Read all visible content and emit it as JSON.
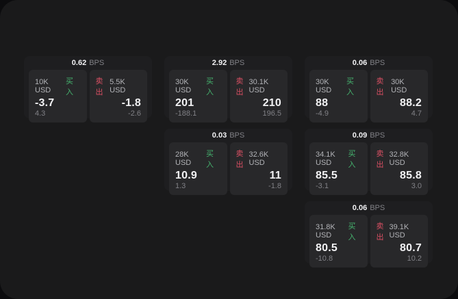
{
  "theme": {
    "outer_bg": "#0c0c0e",
    "page_bg": "#1a1a1b",
    "card_bg": "#1e1e20",
    "panel_bg": "#28282a",
    "text_primary": "#f2f2f4",
    "text_secondary": "#b2b3b7",
    "text_muted": "#818186",
    "buy_color": "#45b36e",
    "sell_color": "#d94f63"
  },
  "labels": {
    "bps_unit": "BPS",
    "buy": "买入",
    "sell": "卖出"
  },
  "cards": [
    {
      "row": 1,
      "col": 1,
      "bps": "0.62",
      "buy": {
        "size": "10K USD",
        "price": "-3.7",
        "delta": "4.3"
      },
      "sell": {
        "size": "5.5K USD",
        "price": "-1.8",
        "delta": "-2.6"
      }
    },
    {
      "row": 1,
      "col": 2,
      "bps": "2.92",
      "buy": {
        "size": "30K USD",
        "price": "201",
        "delta": "-188.1"
      },
      "sell": {
        "size": "30.1K USD",
        "price": "210",
        "delta": "196.5"
      }
    },
    {
      "row": 1,
      "col": 3,
      "bps": "0.06",
      "buy": {
        "size": "30K USD",
        "price": "88",
        "delta": "-4.9"
      },
      "sell": {
        "size": "30K USD",
        "price": "88.2",
        "delta": "4.7"
      }
    },
    {
      "row": 2,
      "col": 2,
      "bps": "0.03",
      "buy": {
        "size": "28K USD",
        "price": "10.9",
        "delta": "1.3"
      },
      "sell": {
        "size": "32.6K USD",
        "price": "11",
        "delta": "-1.8"
      }
    },
    {
      "row": 2,
      "col": 3,
      "bps": "0.09",
      "buy": {
        "size": "34.1K USD",
        "price": "85.5",
        "delta": "-3.1"
      },
      "sell": {
        "size": "32.8K USD",
        "price": "85.8",
        "delta": "3.0"
      }
    },
    {
      "row": 3,
      "col": 3,
      "bps": "0.06",
      "buy": {
        "size": "31.8K USD",
        "price": "80.5",
        "delta": "-10.8"
      },
      "sell": {
        "size": "39.1K USD",
        "price": "80.7",
        "delta": "10.2"
      }
    }
  ]
}
